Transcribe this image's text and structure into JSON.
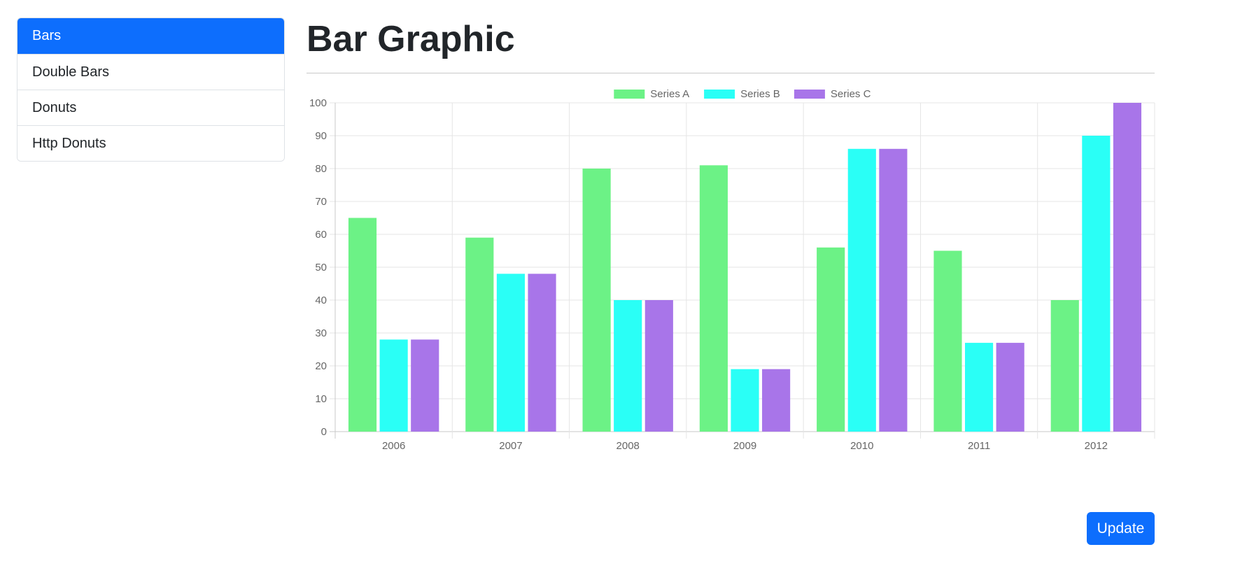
{
  "sidebar": {
    "items": [
      {
        "label": "Bars",
        "active": true
      },
      {
        "label": "Double Bars",
        "active": false
      },
      {
        "label": "Donuts",
        "active": false
      },
      {
        "label": "Http Donuts",
        "active": false
      }
    ]
  },
  "page": {
    "title": "Bar Graphic"
  },
  "actions": {
    "update_label": "Update"
  },
  "colors": {
    "accent": "#0d6efd",
    "grid": "#e5e5e5",
    "series_a": "#6cf286",
    "series_b": "#2afff6",
    "series_c": "#a875e9"
  },
  "chart_data": {
    "type": "bar",
    "categories": [
      "2006",
      "2007",
      "2008",
      "2009",
      "2010",
      "2011",
      "2012"
    ],
    "series": [
      {
        "name": "Series A",
        "color": "#6cf286",
        "values": [
          65,
          59,
          80,
          81,
          56,
          55,
          40
        ]
      },
      {
        "name": "Series B",
        "color": "#2afff6",
        "values": [
          28,
          48,
          40,
          19,
          86,
          27,
          90
        ]
      },
      {
        "name": "Series C",
        "color": "#a875e9",
        "values": [
          28,
          48,
          40,
          19,
          86,
          27,
          100
        ]
      }
    ],
    "ylim": [
      0,
      100
    ],
    "yticks": [
      0,
      10,
      20,
      30,
      40,
      50,
      60,
      70,
      80,
      90,
      100
    ],
    "grid": true,
    "legend": "top-center"
  }
}
